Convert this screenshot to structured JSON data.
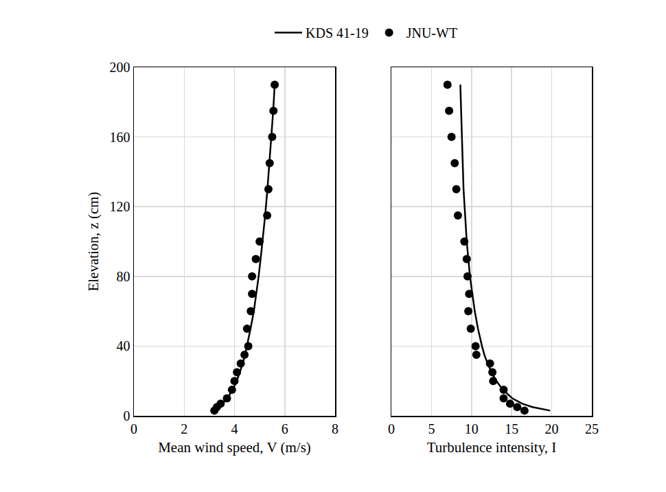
{
  "chart_data": [
    {
      "type": "scatter",
      "xlabel": "Mean wind speed, V (m/s)",
      "ylabel": "Elevation, z (cm)",
      "xlim": [
        0,
        8
      ],
      "xticks": [
        0,
        2,
        4,
        6,
        8
      ],
      "ylim": [
        0,
        200
      ],
      "yticks": [
        0,
        40,
        80,
        120,
        160,
        200
      ],
      "grid": true,
      "legend": "top",
      "series": [
        {
          "name": "KDS 41-19",
          "type": "line",
          "color": "#000000",
          "line_style": "solid",
          "x": [
            3.15,
            3.37,
            3.53,
            3.71,
            3.93,
            4.09,
            4.21,
            4.33,
            4.42,
            4.5,
            4.64,
            4.77,
            4.87,
            4.96,
            5.04,
            5.12,
            5.22,
            5.31,
            5.39,
            5.47,
            5.54,
            5.6
          ],
          "y": [
            3,
            5,
            7,
            10,
            15,
            20,
            25,
            30,
            35,
            40,
            50,
            60,
            70,
            80,
            90,
            100,
            115,
            130,
            145,
            160,
            175,
            190
          ]
        },
        {
          "name": "JNU-WT",
          "type": "scatter",
          "color": "#000000",
          "marker": "circle",
          "x": [
            3.2,
            3.3,
            3.45,
            3.7,
            3.9,
            4.0,
            4.1,
            4.25,
            4.4,
            4.55,
            4.5,
            4.65,
            4.7,
            4.7,
            4.85,
            5.0,
            5.3,
            5.35,
            5.4,
            5.5,
            5.55,
            5.6
          ],
          "y": [
            3,
            5,
            7,
            10,
            15,
            20,
            25,
            30,
            35,
            40,
            50,
            60,
            70,
            80,
            90,
            100,
            115,
            130,
            145,
            160,
            175,
            190
          ]
        }
      ]
    },
    {
      "type": "scatter",
      "xlabel": "Turbulence intensity, I",
      "xlim": [
        0,
        25
      ],
      "xticks": [
        0,
        5,
        10,
        15,
        20,
        25
      ],
      "ylim": [
        0,
        200
      ],
      "yticks": [
        0,
        40,
        80,
        120,
        160,
        200
      ],
      "grid": true,
      "tick_labels": "x",
      "series": [
        {
          "name": "KDS 41-19",
          "type": "line",
          "color": "#000000",
          "line_style": "solid",
          "x": [
            19.8,
            17.6,
            16.3,
            15.1,
            13.9,
            13.1,
            12.5,
            12.0,
            11.6,
            11.3,
            10.8,
            10.4,
            10.1,
            9.8,
            9.6,
            9.4,
            9.2,
            9.0,
            8.9,
            8.8,
            8.7,
            8.6
          ],
          "y": [
            3,
            5,
            7,
            10,
            15,
            20,
            25,
            30,
            35,
            40,
            50,
            60,
            70,
            80,
            90,
            100,
            115,
            130,
            145,
            160,
            175,
            190
          ]
        },
        {
          "name": "JNU-WT",
          "type": "scatter",
          "color": "#000000",
          "marker": "circle",
          "x": [
            16.6,
            15.7,
            14.8,
            14.0,
            14.0,
            12.7,
            12.6,
            12.3,
            10.6,
            10.5,
            9.9,
            9.6,
            9.7,
            9.5,
            9.4,
            9.1,
            8.3,
            8.1,
            7.9,
            7.5,
            7.2,
            7.0
          ],
          "y": [
            3,
            5,
            7,
            10,
            15,
            20,
            25,
            30,
            35,
            40,
            50,
            60,
            70,
            80,
            90,
            100,
            115,
            130,
            145,
            160,
            175,
            190
          ]
        }
      ]
    }
  ]
}
